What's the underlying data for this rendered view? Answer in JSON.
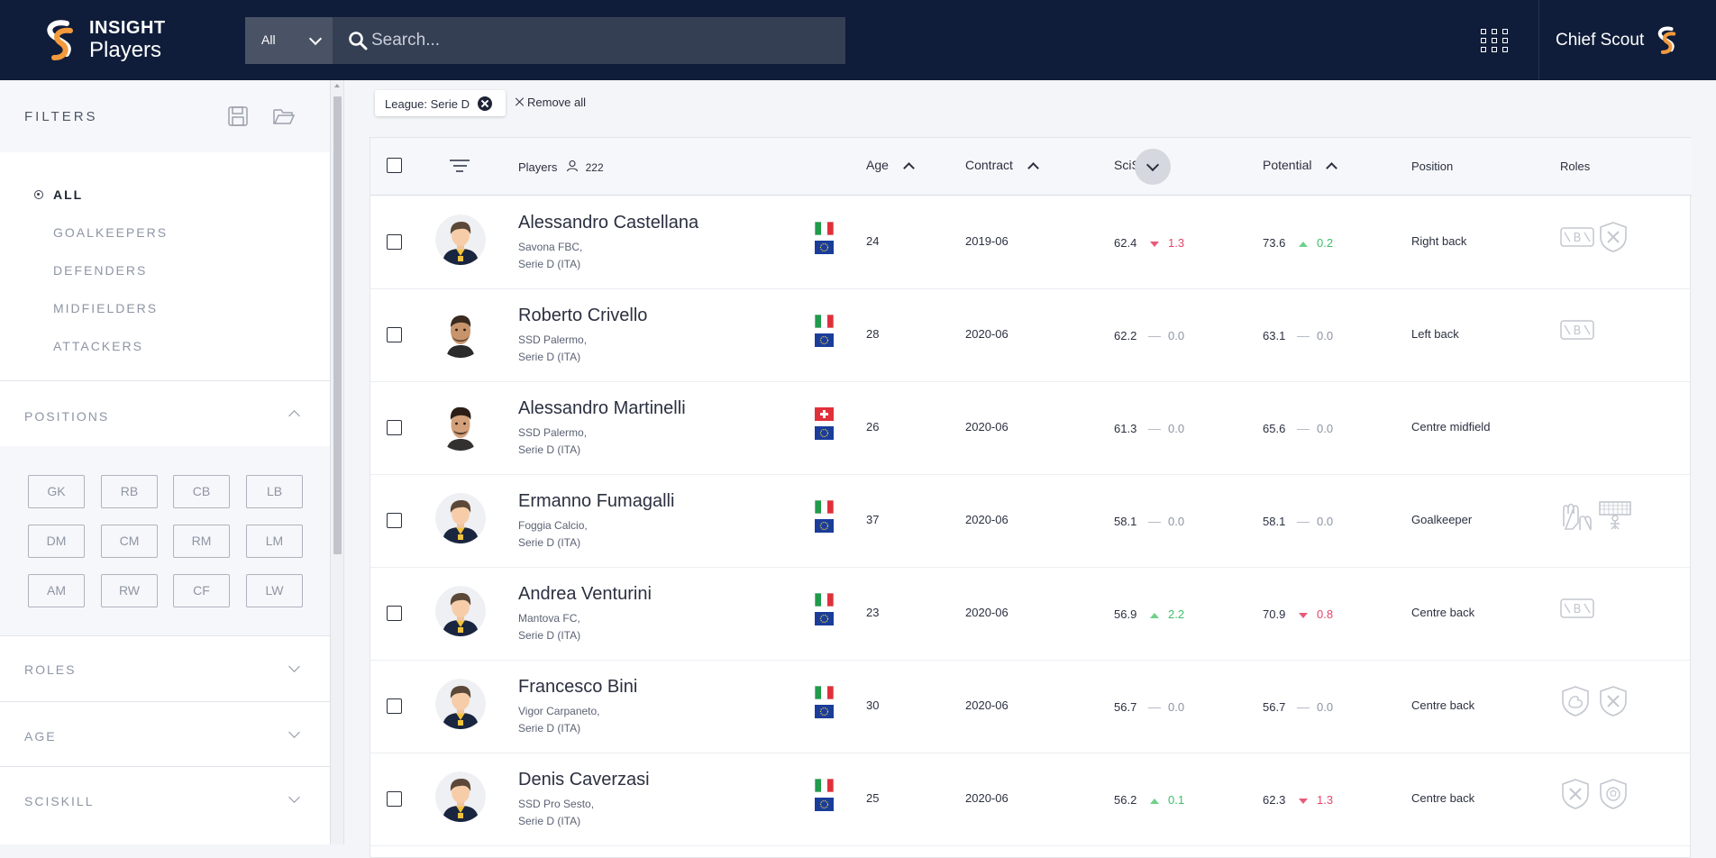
{
  "app": {
    "brand_top": "INSIGHT",
    "brand_bottom": "Players",
    "user_name": "Chief Scout"
  },
  "search": {
    "scope": "All",
    "placeholder": "Search..."
  },
  "sidebar": {
    "title": "FILTERS",
    "groups": [
      "ALL",
      "GOALKEEPERS",
      "DEFENDERS",
      "MIDFIELDERS",
      "ATTACKERS"
    ],
    "active_group": "ALL",
    "sections": {
      "positions": "POSITIONS",
      "roles": "ROLES",
      "age": "AGE",
      "sciskill": "SCISKILL"
    },
    "positions": [
      "GK",
      "RB",
      "CB",
      "LB",
      "DM",
      "CM",
      "RM",
      "LM",
      "AM",
      "RW",
      "CF",
      "LW"
    ]
  },
  "filters": {
    "chip": "League: Serie D",
    "remove_all": "Remove all"
  },
  "table": {
    "headers": {
      "players": "Players",
      "player_count": "222",
      "age": "Age",
      "contract": "Contract",
      "sciskill": "SciSkill",
      "potential": "Potential",
      "position": "Position",
      "roles": "Roles"
    },
    "rows": [
      {
        "name": "Alessandro Castellana",
        "club": "Savona FBC,",
        "league": "Serie D (ITA)",
        "flag": "IT",
        "age": "24",
        "contract": "2019-06",
        "sciskill": "62.4",
        "sciskill_trend": "down",
        "sciskill_delta": "1.3",
        "potential": "73.6",
        "potential_trend": "up",
        "potential_delta": "0.2",
        "position": "Right back",
        "roles": [
          "ball-playing-defender-icon",
          "tackler-shield-icon"
        ],
        "photo": "generic"
      },
      {
        "name": "Roberto Crivello",
        "club": "SSD Palermo,",
        "league": "Serie D (ITA)",
        "flag": "IT",
        "age": "28",
        "contract": "2020-06",
        "sciskill": "62.2",
        "sciskill_trend": "flat",
        "sciskill_delta": "0.0",
        "potential": "63.1",
        "potential_trend": "flat",
        "potential_delta": "0.0",
        "position": "Left back",
        "roles": [
          "ball-playing-defender-icon"
        ],
        "photo": "real-a"
      },
      {
        "name": "Alessandro Martinelli",
        "club": "SSD Palermo,",
        "league": "Serie D (ITA)",
        "flag": "CH",
        "age": "26",
        "contract": "2020-06",
        "sciskill": "61.3",
        "sciskill_trend": "flat",
        "sciskill_delta": "0.0",
        "potential": "65.6",
        "potential_trend": "flat",
        "potential_delta": "0.0",
        "position": "Centre midfield",
        "roles": [],
        "photo": "real-b"
      },
      {
        "name": "Ermanno Fumagalli",
        "club": "Foggia Calcio,",
        "league": "Serie D (ITA)",
        "flag": "IT",
        "age": "37",
        "contract": "2020-06",
        "sciskill": "58.1",
        "sciskill_trend": "flat",
        "sciskill_delta": "0.0",
        "potential": "58.1",
        "potential_trend": "flat",
        "potential_delta": "0.0",
        "position": "Goalkeeper",
        "roles": [
          "gloves-icon",
          "goal-net-icon"
        ],
        "photo": "generic"
      },
      {
        "name": "Andrea Venturini",
        "club": "Mantova FC,",
        "league": "Serie D (ITA)",
        "flag": "IT",
        "age": "23",
        "contract": "2020-06",
        "sciskill": "56.9",
        "sciskill_trend": "up",
        "sciskill_delta": "2.2",
        "potential": "70.9",
        "potential_trend": "down",
        "potential_delta": "0.8",
        "position": "Centre back",
        "roles": [
          "ball-playing-defender-icon"
        ],
        "photo": "generic"
      },
      {
        "name": "Francesco Bini",
        "club": "Vigor Carpaneto,",
        "league": "Serie D (ITA)",
        "flag": "IT",
        "age": "30",
        "contract": "2020-06",
        "sciskill": "56.7",
        "sciskill_trend": "flat",
        "sciskill_delta": "0.0",
        "potential": "56.7",
        "potential_trend": "flat",
        "potential_delta": "0.0",
        "position": "Centre back",
        "roles": [
          "strength-shield-icon",
          "tackler-shield-icon"
        ],
        "photo": "generic"
      },
      {
        "name": "Denis Caverzasi",
        "club": "SSD Pro Sesto,",
        "league": "Serie D (ITA)",
        "flag": "IT",
        "age": "25",
        "contract": "2020-06",
        "sciskill": "56.2",
        "sciskill_trend": "up",
        "sciskill_delta": "0.1",
        "potential": "62.3",
        "potential_trend": "down",
        "potential_delta": "1.3",
        "position": "Centre back",
        "roles": [
          "tackler-shield-icon",
          "ball-shield-icon"
        ],
        "photo": "generic"
      }
    ]
  },
  "colors": {
    "navbar": "#0f1d3a",
    "accent_orange": "#f39a3c",
    "trend_up": "#3cbf6a",
    "trend_down": "#e5466b"
  }
}
